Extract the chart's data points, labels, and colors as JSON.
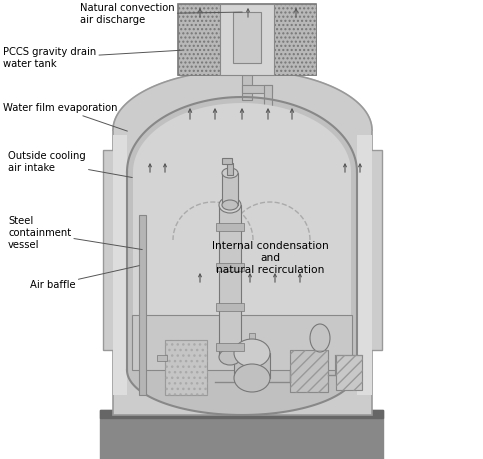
{
  "background_color": "#ffffff",
  "labels": {
    "natural_convection": "Natural convection\nair discharge",
    "pccs_gravity": "PCCS gravity drain\nwater tank",
    "water_film": "Water film evaporation",
    "outside_cooling": "Outside cooling\nair intake",
    "steel_containment": "Steel\ncontainment\nvessel",
    "air_baffle": "Air baffle",
    "internal_condensation": "Internal condensation\nand\nnatural recirculation"
  },
  "colors": {
    "outer_building": "#999999",
    "outer_building_fill": "#cccccc",
    "containment_vessel_fill": "#c0c0c0",
    "containment_vessel_stroke": "#888888",
    "inner_vessel_fill": "#d4d4d4",
    "ground_fill": "#888888",
    "annulus_fill": "#dddddd",
    "reactor_fill": "#c0c0c0",
    "text_color": "#000000",
    "arrow_color": "#555555",
    "dashed_line_color": "#aaaaaa",
    "tank_hatch": "#b8b8b8",
    "equipment_fill": "#c4c4c4"
  }
}
